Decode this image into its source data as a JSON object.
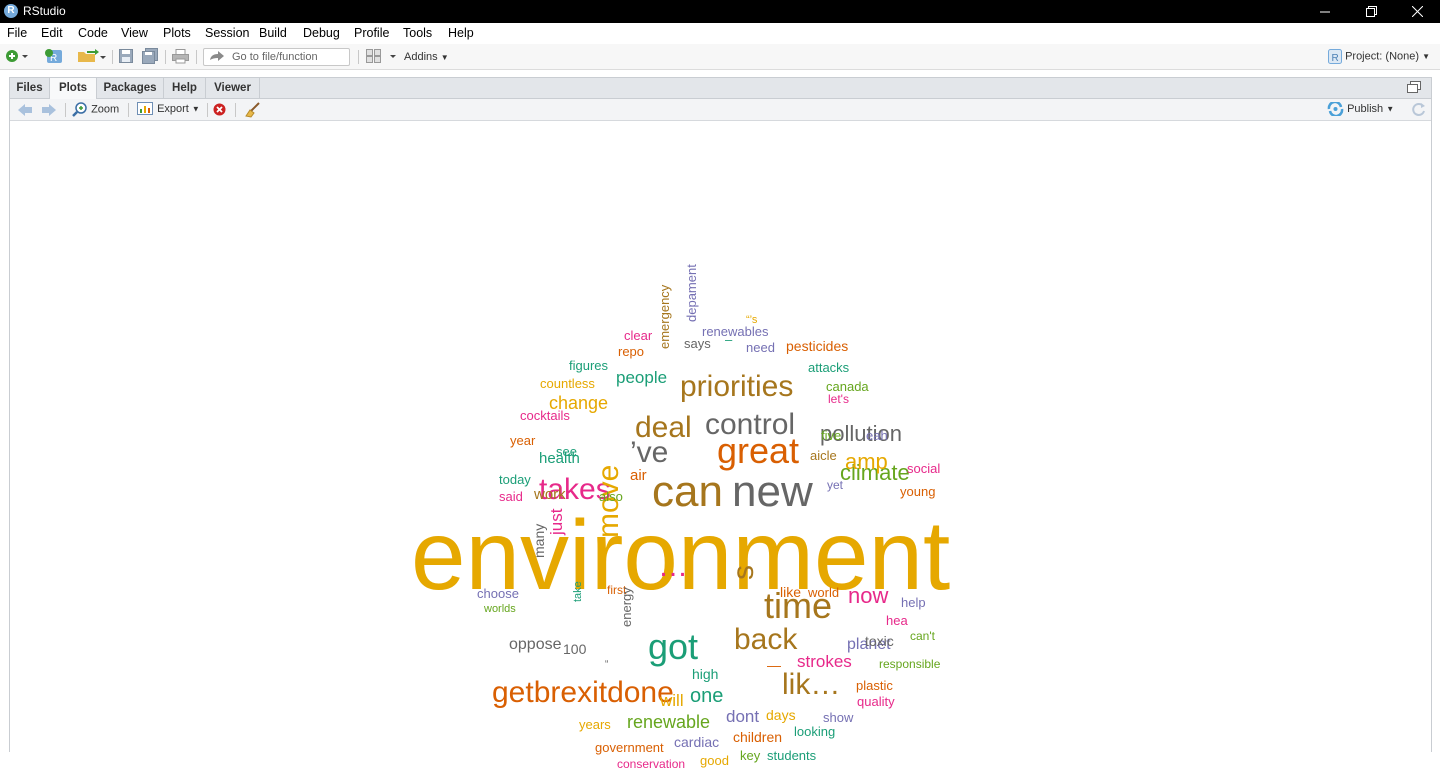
{
  "window": {
    "title": "RStudio",
    "logo_letter": "R"
  },
  "menu": [
    "File",
    "Edit",
    "Code",
    "View",
    "Plots",
    "Session",
    "Build",
    "Debug",
    "Profile",
    "Tools",
    "Help"
  ],
  "toolbar": {
    "goto_placeholder": "Go to file/function",
    "addins_label": "Addins",
    "project_label": "Project: (None)"
  },
  "pane": {
    "tabs": [
      "Files",
      "Plots",
      "Packages",
      "Help",
      "Viewer"
    ],
    "active_tab": "Plots",
    "zoom_label": "Zoom",
    "export_label": "Export",
    "publish_label": "Publish"
  },
  "colors": {
    "gold": "#e6a800",
    "brown": "#a6761d",
    "gray": "#666666",
    "orange": "#d95f02",
    "magenta": "#e7298a",
    "teal": "#1b9e77",
    "purple": "#7570b3",
    "green": "#66a61e"
  },
  "wordcloud": [
    {
      "text": "environment",
      "color": "gold",
      "size": 98
    },
    {
      "text": "new",
      "color": "gray",
      "size": 44
    },
    {
      "text": "can",
      "color": "brown",
      "size": 44
    },
    {
      "text": "great",
      "color": "orange",
      "size": 36
    },
    {
      "text": "time",
      "color": "brown",
      "size": 36
    },
    {
      "text": "got",
      "color": "teal",
      "size": 36
    },
    {
      "text": "deal",
      "color": "brown",
      "size": 30
    },
    {
      "text": "control",
      "color": "gray",
      "size": 30
    },
    {
      "text": "priorities",
      "color": "brown",
      "size": 30
    },
    {
      "text": "takes",
      "color": "magenta",
      "size": 30
    },
    {
      "text": "’ve",
      "color": "gray",
      "size": 30
    },
    {
      "text": "back",
      "color": "brown",
      "size": 30
    },
    {
      "text": "move",
      "color": "gold",
      "size": 30
    },
    {
      "text": "getbrexitdone",
      "color": "orange",
      "size": 30
    },
    {
      "text": "lik…",
      "color": "brown",
      "size": 30
    },
    {
      "text": "…",
      "color": "magenta",
      "size": 30
    },
    {
      "text": "s",
      "color": "brown",
      "size": 30
    },
    {
      "text": "pollution",
      "color": "gray",
      "size": 22
    },
    {
      "text": "climate",
      "color": "green",
      "size": 22
    },
    {
      "text": "amp",
      "color": "gold",
      "size": 22
    },
    {
      "text": "now",
      "color": "magenta",
      "size": 22
    },
    {
      "text": "one",
      "color": "teal",
      "size": 20
    },
    {
      "text": "renewable",
      "color": "green",
      "size": 18
    },
    {
      "text": "change",
      "color": "gold",
      "size": 18
    },
    {
      "text": "people",
      "color": "teal",
      "size": 17
    },
    {
      "text": "strokes",
      "color": "magenta",
      "size": 17
    },
    {
      "text": "just",
      "color": "magenta",
      "size": 17
    },
    {
      "text": "will",
      "color": "gold",
      "size": 17
    },
    {
      "text": "dont",
      "color": "purple",
      "size": 17
    },
    {
      "text": "oppose",
      "color": "gray",
      "size": 16
    },
    {
      "text": "planet",
      "color": "purple",
      "size": 16
    },
    {
      "text": "work",
      "color": "brown",
      "size": 15
    },
    {
      "text": "air",
      "color": "orange",
      "size": 15
    },
    {
      "text": "health",
      "color": "teal",
      "size": 15
    },
    {
      "text": "pesticides",
      "color": "orange",
      "size": 14
    },
    {
      "text": "100",
      "color": "gray",
      "size": 14
    },
    {
      "text": "cardiac",
      "color": "purple",
      "size": 14
    },
    {
      "text": "children",
      "color": "orange",
      "size": 14
    },
    {
      "text": "high",
      "color": "teal",
      "size": 14
    },
    {
      "text": "toxic",
      "color": "gray",
      "size": 14
    },
    {
      "text": "like",
      "color": "orange",
      "size": 14
    },
    {
      "text": "many",
      "color": "gray",
      "size": 14
    },
    {
      "text": "canada",
      "color": "green",
      "size": 13
    },
    {
      "text": "renewables",
      "color": "purple",
      "size": 13
    },
    {
      "text": "says",
      "color": "gray",
      "size": 13
    },
    {
      "text": "need",
      "color": "purple",
      "size": 13
    },
    {
      "text": "attacks",
      "color": "teal",
      "size": 13
    },
    {
      "text": "figures",
      "color": "teal",
      "size": 13
    },
    {
      "text": "countless",
      "color": "gold",
      "size": 13
    },
    {
      "text": "cocktails",
      "color": "magenta",
      "size": 13
    },
    {
      "text": "year",
      "color": "orange",
      "size": 13
    },
    {
      "text": "see",
      "color": "teal",
      "size": 13
    },
    {
      "text": "today",
      "color": "teal",
      "size": 13
    },
    {
      "text": "said",
      "color": "magenta",
      "size": 13
    },
    {
      "text": "also",
      "color": "green",
      "size": 13
    },
    {
      "text": "social",
      "color": "magenta",
      "size": 13
    },
    {
      "text": "young",
      "color": "orange",
      "size": 13
    },
    {
      "text": "aicle",
      "color": "brown",
      "size": 13
    },
    {
      "text": "five",
      "color": "green",
      "size": 13
    },
    {
      "text": "eah",
      "color": "purple",
      "size": 13
    },
    {
      "text": "let's",
      "color": "magenta",
      "size": 12
    },
    {
      "text": "yet",
      "color": "purple",
      "size": 12
    },
    {
      "text": "repo",
      "color": "orange",
      "size": 13
    },
    {
      "text": "clear",
      "color": "magenta",
      "size": 13
    },
    {
      "text": "emergency",
      "color": "brown",
      "size": 13
    },
    {
      "text": "depament",
      "color": "purple",
      "size": 13
    },
    {
      "text": "“’s",
      "color": "gold",
      "size": 11
    },
    {
      "text": "–",
      "color": "teal",
      "size": 13
    },
    {
      "text": "choose",
      "color": "purple",
      "size": 13
    },
    {
      "text": "worlds",
      "color": "green",
      "size": 11
    },
    {
      "text": "first",
      "color": "orange",
      "size": 12
    },
    {
      "text": "take",
      "color": "teal",
      "size": 11
    },
    {
      "text": "energy",
      "color": "gray",
      "size": 13
    },
    {
      "text": "world",
      "color": "orange",
      "size": 13
    },
    {
      "text": "help",
      "color": "purple",
      "size": 13
    },
    {
      "text": "hea",
      "color": "magenta",
      "size": 13
    },
    {
      "text": "can't",
      "color": "green",
      "size": 12
    },
    {
      "text": "responsible",
      "color": "green",
      "size": 12
    },
    {
      "text": "plastic",
      "color": "orange",
      "size": 13
    },
    {
      "text": "quality",
      "color": "magenta",
      "size": 13
    },
    {
      "text": "show",
      "color": "purple",
      "size": 13
    },
    {
      "text": "days",
      "color": "gold",
      "size": 14
    },
    {
      "text": "looking",
      "color": "teal",
      "size": 13
    },
    {
      "text": "years",
      "color": "gold",
      "size": 13
    },
    {
      "text": "government",
      "color": "orange",
      "size": 13
    },
    {
      "text": "conservation",
      "color": "magenta",
      "size": 12
    },
    {
      "text": "good",
      "color": "gold",
      "size": 13
    },
    {
      "text": "key",
      "color": "green",
      "size": 13
    },
    {
      "text": "students",
      "color": "teal",
      "size": 13
    },
    {
      "text": "—",
      "color": "orange",
      "size": 14
    },
    {
      "text": "“",
      "color": "gray",
      "size": 10
    }
  ]
}
